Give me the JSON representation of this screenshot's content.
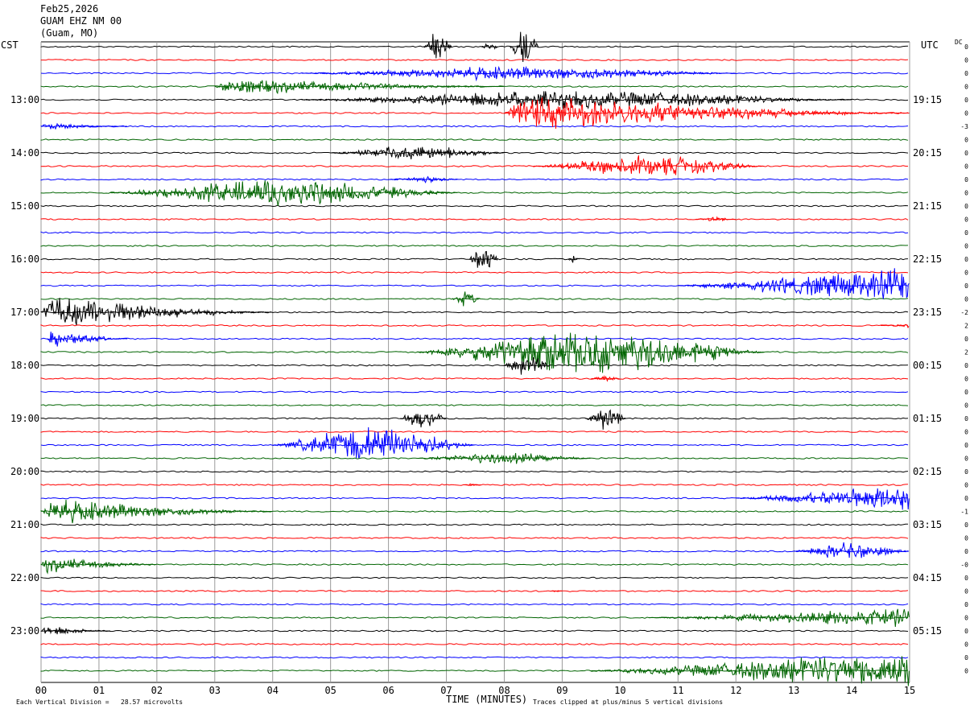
{
  "header": {
    "date": "Feb25,2026",
    "station": "GUAM EHZ NM 00",
    "location": "(Guam, MO)"
  },
  "axis_labels": {
    "left_tz": "CST",
    "right_tz": "UTC",
    "right_edge": "DC",
    "xlabel": "TIME (MINUTES)"
  },
  "footer": {
    "scale_note": "Each Vertical Division =   28.57 microvolts",
    "clip_note": "Traces clipped at plus/minus 5 vertical divisions"
  },
  "colors": {
    "trace_cycle": [
      "#000000",
      "#ff0000",
      "#0000ff",
      "#006400"
    ],
    "grid": "#9a9a9a"
  },
  "chart_data": {
    "type": "line",
    "title": "",
    "xlabel": "TIME (MINUTES)",
    "xlim": [
      0,
      15
    ],
    "x_ticks": [
      "00",
      "01",
      "02",
      "03",
      "04",
      "05",
      "06",
      "07",
      "08",
      "09",
      "10",
      "11",
      "12",
      "13",
      "14",
      "15"
    ],
    "row_count": 48,
    "minutes_per_row": 15,
    "left_hour_labels": [
      {
        "row": 4,
        "label": "13:00"
      },
      {
        "row": 8,
        "label": "14:00"
      },
      {
        "row": 12,
        "label": "15:00"
      },
      {
        "row": 16,
        "label": "16:00"
      },
      {
        "row": 20,
        "label": "17:00"
      },
      {
        "row": 24,
        "label": "18:00"
      },
      {
        "row": 28,
        "label": "19:00"
      },
      {
        "row": 32,
        "label": "20:00"
      },
      {
        "row": 36,
        "label": "21:00"
      },
      {
        "row": 40,
        "label": "22:00"
      },
      {
        "row": 44,
        "label": "23:00"
      }
    ],
    "right_hour_labels": [
      {
        "row": 4,
        "label": "19:15"
      },
      {
        "row": 8,
        "label": "20:15"
      },
      {
        "row": 12,
        "label": "21:15"
      },
      {
        "row": 16,
        "label": "22:15"
      },
      {
        "row": 20,
        "label": "23:15"
      },
      {
        "row": 24,
        "label": "00:15"
      },
      {
        "row": 28,
        "label": "01:15"
      },
      {
        "row": 32,
        "label": "02:15"
      },
      {
        "row": 36,
        "label": "03:15"
      },
      {
        "row": 40,
        "label": "04:15"
      },
      {
        "row": 44,
        "label": "05:15"
      }
    ],
    "dc_offsets": [
      "0",
      "0",
      "0",
      "0",
      "0",
      "0",
      "-3",
      "0",
      "0",
      "0",
      "0",
      "0",
      "0",
      "0",
      "0",
      "0",
      "0",
      "0",
      "0",
      "0",
      "-2",
      "2",
      "0",
      "2",
      "0",
      "0",
      "0",
      "0",
      "0",
      "0",
      "0",
      "0",
      "0",
      "0",
      "0",
      "-1",
      "0",
      "0",
      "0",
      "-0",
      "0",
      "0",
      "0",
      "0",
      "0",
      "0",
      "0",
      "0"
    ],
    "events": [
      {
        "row": 0,
        "start": 6.6,
        "end": 7.1,
        "amp": 22,
        "shape": "burst"
      },
      {
        "row": 0,
        "start": 7.6,
        "end": 7.9,
        "amp": 6,
        "shape": "burst"
      },
      {
        "row": 0,
        "start": 8.1,
        "end": 8.6,
        "amp": 28,
        "shape": "burst"
      },
      {
        "row": 2,
        "start": 4.5,
        "end": 12.0,
        "amp": 9,
        "shape": "swell"
      },
      {
        "row": 3,
        "start": 3.0,
        "end": 8.0,
        "amp": 12,
        "shape": "decay"
      },
      {
        "row": 4,
        "start": 4.5,
        "end": 14.0,
        "amp": 12,
        "shape": "swell"
      },
      {
        "row": 5,
        "start": 8.0,
        "end": 15.0,
        "amp": 26,
        "shape": "decay"
      },
      {
        "row": 6,
        "start": 0.0,
        "end": 1.5,
        "amp": 5,
        "shape": "decay"
      },
      {
        "row": 8,
        "start": 5.0,
        "end": 8.0,
        "amp": 10,
        "shape": "swell"
      },
      {
        "row": 9,
        "start": 8.5,
        "end": 12.5,
        "amp": 14,
        "shape": "swell"
      },
      {
        "row": 10,
        "start": 6.0,
        "end": 7.2,
        "amp": 4,
        "shape": "swell"
      },
      {
        "row": 11,
        "start": 1.2,
        "end": 7.2,
        "amp": 18,
        "shape": "swell"
      },
      {
        "row": 13,
        "start": 11.3,
        "end": 12.0,
        "amp": 3,
        "shape": "swell"
      },
      {
        "row": 16,
        "start": 7.4,
        "end": 7.9,
        "amp": 18,
        "shape": "burst"
      },
      {
        "row": 16,
        "start": 9.1,
        "end": 9.3,
        "amp": 5,
        "shape": "burst"
      },
      {
        "row": 18,
        "start": 11.0,
        "end": 15.0,
        "amp": 26,
        "shape": "rise"
      },
      {
        "row": 19,
        "start": 7.1,
        "end": 7.6,
        "amp": 10,
        "shape": "burst"
      },
      {
        "row": 20,
        "start": 0.0,
        "end": 4.0,
        "amp": 24,
        "shape": "decay"
      },
      {
        "row": 21,
        "start": 14.5,
        "end": 15.0,
        "amp": 3,
        "shape": "rise"
      },
      {
        "row": 22,
        "start": 0.1,
        "end": 1.5,
        "amp": 14,
        "shape": "decay"
      },
      {
        "row": 23,
        "start": 6.5,
        "end": 12.5,
        "amp": 30,
        "shape": "swell"
      },
      {
        "row": 24,
        "start": 8.0,
        "end": 8.8,
        "amp": 16,
        "shape": "burst"
      },
      {
        "row": 25,
        "start": 9.5,
        "end": 10.0,
        "amp": 4,
        "shape": "swell"
      },
      {
        "row": 28,
        "start": 6.2,
        "end": 7.0,
        "amp": 14,
        "shape": "burst"
      },
      {
        "row": 28,
        "start": 9.4,
        "end": 10.1,
        "amp": 16,
        "shape": "burst"
      },
      {
        "row": 30,
        "start": 4.0,
        "end": 7.5,
        "amp": 24,
        "shape": "swell"
      },
      {
        "row": 31,
        "start": 6.5,
        "end": 9.5,
        "amp": 8,
        "shape": "swell"
      },
      {
        "row": 33,
        "start": 7.3,
        "end": 7.6,
        "amp": 2,
        "shape": "burst"
      },
      {
        "row": 34,
        "start": 12.0,
        "end": 15.0,
        "amp": 20,
        "shape": "rise"
      },
      {
        "row": 35,
        "start": 0.0,
        "end": 4.0,
        "amp": 18,
        "shape": "decay"
      },
      {
        "row": 38,
        "start": 13.0,
        "end": 15.0,
        "amp": 12,
        "shape": "swell"
      },
      {
        "row": 39,
        "start": 0.0,
        "end": 2.0,
        "amp": 12,
        "shape": "decay"
      },
      {
        "row": 41,
        "start": 8.8,
        "end": 9.0,
        "amp": 1,
        "shape": "burst"
      },
      {
        "row": 43,
        "start": 10.5,
        "end": 15.0,
        "amp": 14,
        "shape": "rise"
      },
      {
        "row": 44,
        "start": 0.0,
        "end": 1.2,
        "amp": 8,
        "shape": "decay"
      },
      {
        "row": 47,
        "start": 9.5,
        "end": 15.0,
        "amp": 28,
        "shape": "rise"
      }
    ]
  }
}
